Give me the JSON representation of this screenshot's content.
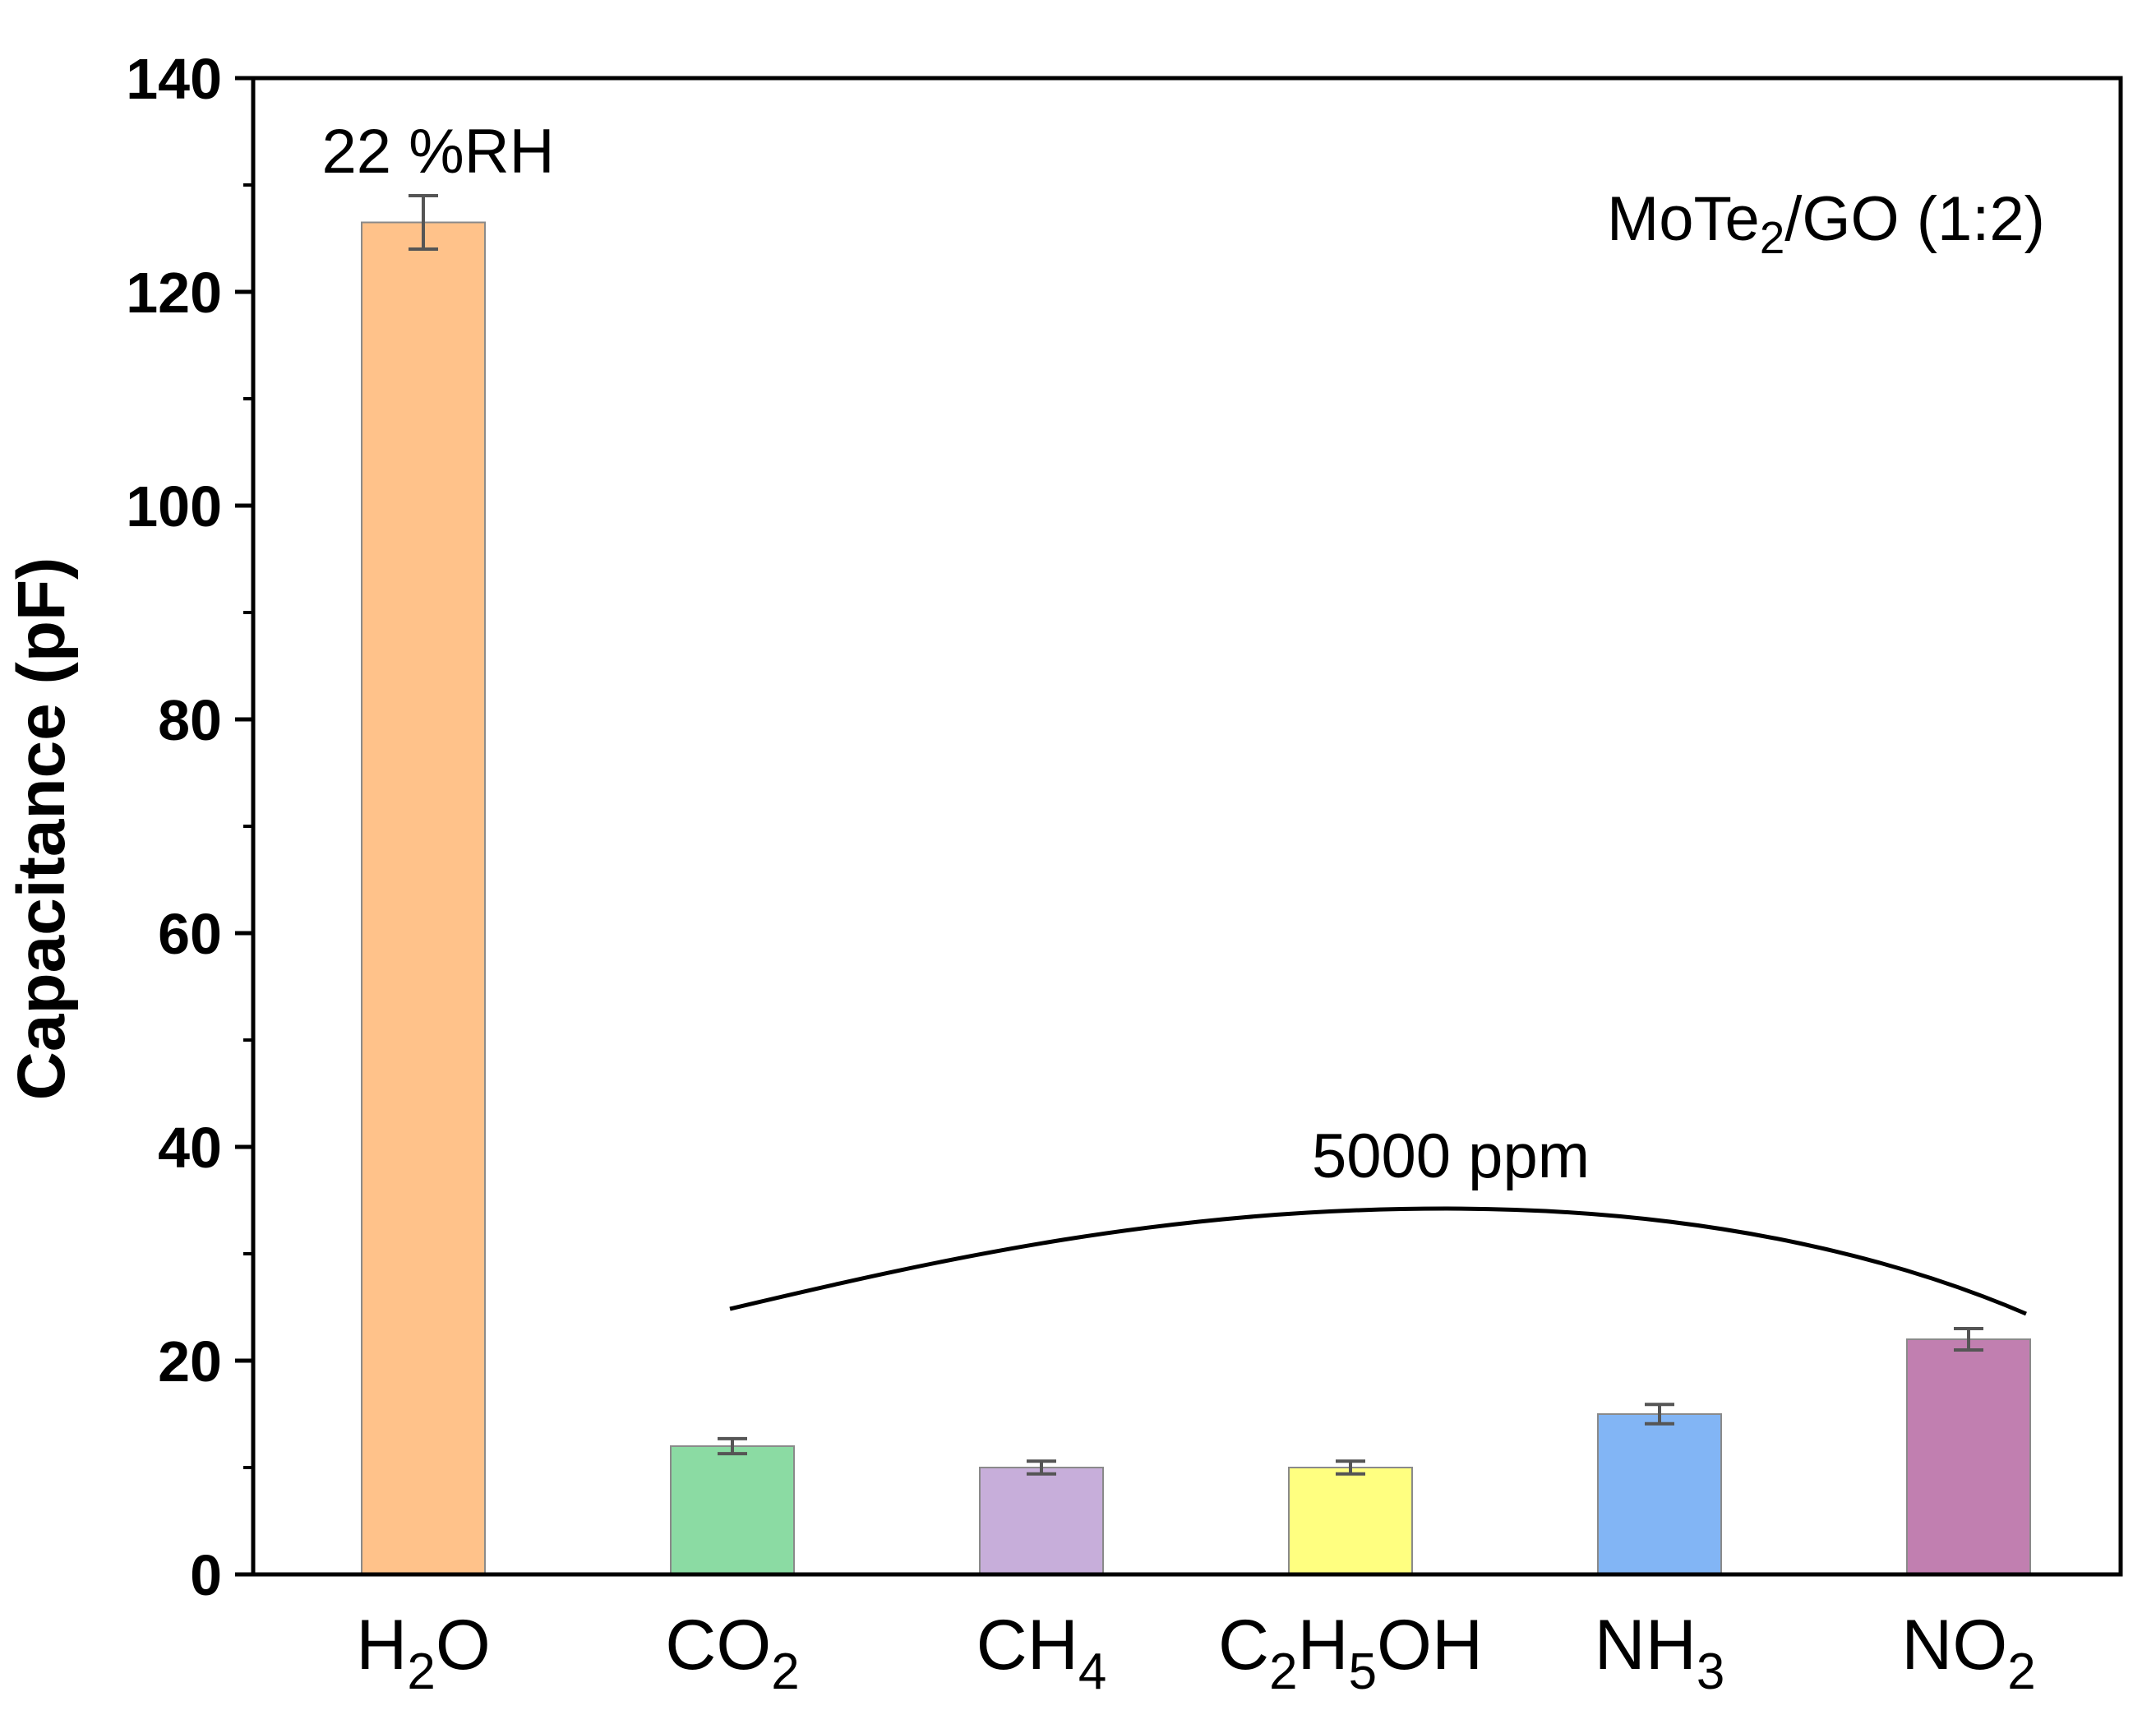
{
  "chart_data": {
    "type": "bar",
    "title": "",
    "xlabel": "",
    "ylabel": "Capacitance (pF)",
    "ylim": [
      0,
      140
    ],
    "yticks": [
      0,
      20,
      40,
      60,
      80,
      100,
      120,
      140
    ],
    "grid": false,
    "categories": [
      {
        "main": "H",
        "sub": "2",
        "rest": "O"
      },
      {
        "main": "CO",
        "sub": "2",
        "rest": ""
      },
      {
        "main": "CH",
        "sub": "4",
        "rest": ""
      },
      {
        "main": "C",
        "sub": "2",
        "mid": "H",
        "sub2": "5",
        "rest": "OH"
      },
      {
        "main": "NH",
        "sub": "3",
        "rest": ""
      },
      {
        "main": "NO",
        "sub": "2",
        "rest": ""
      }
    ],
    "values": [
      126.5,
      12,
      10,
      10,
      15,
      22
    ],
    "errors": [
      2.5,
      0.7,
      0.6,
      0.6,
      0.9,
      1.0
    ],
    "colors": [
      "#FFC28A",
      "#8BDBA3",
      "#C7AEDA",
      "#FFFF80",
      "#82B5F5",
      "#C17FB0"
    ],
    "annotations": {
      "humidity": "22 %RH",
      "concentration": "5000 ppm",
      "sample_main": "MoTe",
      "sample_sub": "2",
      "sample_rest": "/GO (1:2)"
    }
  }
}
